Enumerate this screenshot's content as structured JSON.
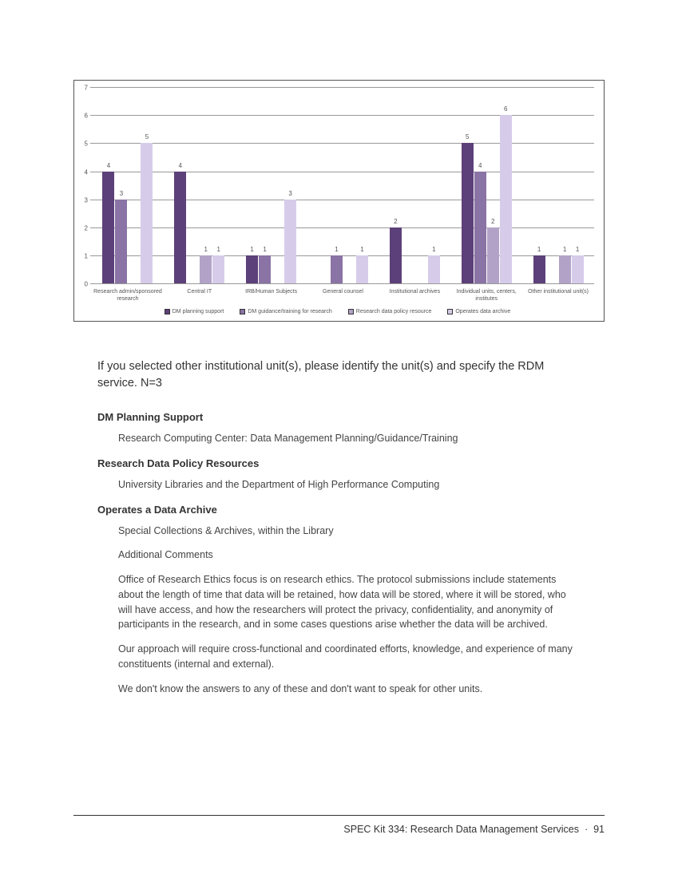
{
  "chart": {
    "type": "bar",
    "ylim": [
      0,
      7
    ],
    "ytick_step": 1,
    "grid_color": "#999999",
    "axis_color": "#555555",
    "background_color": "#ffffff",
    "label_fontsize": 8,
    "categories": [
      "Research admin/sponsored research",
      "Central IT",
      "IRB/Human Subjects",
      "General counsel",
      "Institutional archives",
      "Individual units, centers, institutes",
      "Other institutional unit(s)"
    ],
    "series": [
      {
        "name": "DM planning support",
        "color": "#5c4079"
      },
      {
        "name": "DM guidance/training for research",
        "color": "#8a73a5"
      },
      {
        "name": "Research data policy resource",
        "color": "#b3a2c7"
      },
      {
        "name": "Operates data archive",
        "color": "#d6ccea"
      }
    ],
    "data": [
      [
        4,
        3,
        null,
        5
      ],
      [
        4,
        null,
        1,
        1
      ],
      [
        1,
        1,
        null,
        3
      ],
      [
        null,
        1,
        null,
        1
      ],
      [
        2,
        null,
        null,
        1
      ],
      [
        5,
        4,
        2,
        6
      ],
      [
        1,
        null,
        1,
        1
      ]
    ]
  },
  "text": {
    "prompt": "If you selected other institutional unit(s), please identify the unit(s) and specify the RDM service. N=3",
    "h1": "DM Planning Support",
    "p1": "Research Computing Center: Data Management Planning/Guidance/Training",
    "h2": "Research Data Policy Resources",
    "p2": "University Libraries and the Department of High Performance Computing",
    "h3": "Operates a Data Archive",
    "p3": "Special Collections & Archives, within the Library",
    "p4": "Additional Comments",
    "p5": "Office of Research Ethics focus is on research ethics. The protocol submissions include statements about the length of time that data will be retained, how data will be stored, where it will be stored, who will have access, and how the researchers will protect the privacy, confidentiality, and anonymity of participants in the research, and in some cases questions arise whether the data will be archived.",
    "p6": "Our approach will require cross-functional and coordinated efforts, knowledge, and experience of many constituents (internal and external).",
    "p7": "We don't know the answers to any of these and don't want to speak for other units."
  },
  "footer": {
    "title": "SPEC Kit 334: Research Data Management Services",
    "separator": "·",
    "page": "91"
  }
}
